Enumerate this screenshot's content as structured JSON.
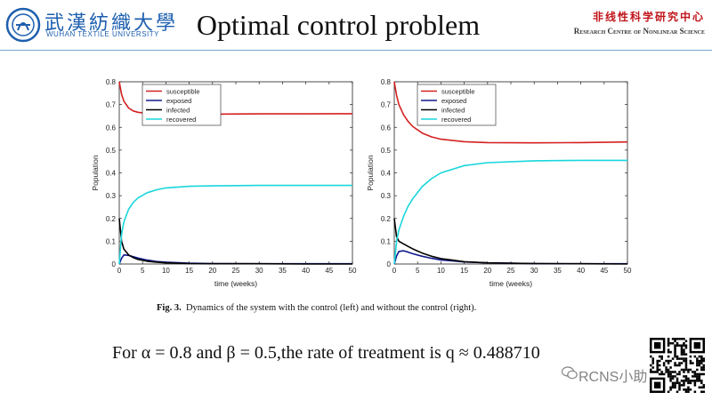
{
  "header": {
    "university_cn": "武漢紡織大學",
    "university_en": "WUHAN TEXTILE UNIVERSITY",
    "title": "Optimal control problem",
    "centre_cn": "非线性科学研究中心",
    "centre_en": "Research Centre of Nonlinear Science"
  },
  "figure": {
    "caption_label": "Fig. 3.",
    "caption_text": "Dynamics of the system with the control (left) and without the control (right)."
  },
  "note": "For α = 0.8 and β = 0.5,the rate of treatment is q ≈ 0.488710",
  "watermark": "RCNS小助",
  "colors": {
    "susceptible": "#d42020",
    "exposed": "#101a8c",
    "infected": "#000000",
    "recovered": "#19d6dc",
    "accent": "#1d5fae"
  },
  "chart_data": [
    {
      "type": "line",
      "title": "",
      "xlabel": "time (weeks)",
      "ylabel": "Population",
      "xlim": [
        0,
        50
      ],
      "ylim": [
        0,
        0.8
      ],
      "xticks": [
        0,
        5,
        10,
        15,
        20,
        25,
        30,
        35,
        40,
        45,
        50
      ],
      "yticks": [
        0,
        0.1,
        0.2,
        0.3,
        0.4,
        0.5,
        0.6,
        0.7,
        0.8
      ],
      "legend": "top-left",
      "x": [
        0,
        0.5,
        1,
        2,
        3,
        4,
        6,
        8,
        10,
        15,
        20,
        30,
        40,
        50
      ],
      "series": [
        {
          "name": "susceptible",
          "values": [
            0.8,
            0.745,
            0.715,
            0.685,
            0.672,
            0.666,
            0.661,
            0.659,
            0.658,
            0.658,
            0.658,
            0.659,
            0.659,
            0.66
          ]
        },
        {
          "name": "exposed",
          "values": [
            0.0,
            0.025,
            0.04,
            0.038,
            0.032,
            0.026,
            0.017,
            0.011,
            0.008,
            0.004,
            0.002,
            0.001,
            0.001,
            0.001
          ]
        },
        {
          "name": "infected",
          "values": [
            0.2,
            0.1,
            0.065,
            0.04,
            0.028,
            0.02,
            0.012,
            0.008,
            0.005,
            0.002,
            0.001,
            0.001,
            0.0,
            0.0
          ]
        },
        {
          "name": "recovered",
          "values": [
            0.0,
            0.13,
            0.185,
            0.24,
            0.27,
            0.29,
            0.313,
            0.326,
            0.334,
            0.341,
            0.343,
            0.345,
            0.345,
            0.345
          ]
        }
      ]
    },
    {
      "type": "line",
      "title": "",
      "xlabel": "time (weeks)",
      "ylabel": "Population",
      "xlim": [
        0,
        50
      ],
      "ylim": [
        0,
        0.8
      ],
      "xticks": [
        0,
        5,
        10,
        15,
        20,
        25,
        30,
        35,
        40,
        45,
        50
      ],
      "yticks": [
        0,
        0.1,
        0.2,
        0.3,
        0.4,
        0.5,
        0.6,
        0.7,
        0.8
      ],
      "legend": "top-left",
      "x": [
        0,
        0.5,
        1,
        2,
        3,
        4,
        6,
        8,
        10,
        15,
        20,
        30,
        40,
        50
      ],
      "series": [
        {
          "name": "susceptible",
          "values": [
            0.8,
            0.74,
            0.7,
            0.655,
            0.625,
            0.603,
            0.575,
            0.558,
            0.548,
            0.537,
            0.533,
            0.532,
            0.533,
            0.536
          ]
        },
        {
          "name": "exposed",
          "values": [
            0.0,
            0.035,
            0.055,
            0.058,
            0.052,
            0.045,
            0.034,
            0.025,
            0.018,
            0.009,
            0.005,
            0.002,
            0.001,
            0.001
          ]
        },
        {
          "name": "infected",
          "values": [
            0.2,
            0.12,
            0.1,
            0.088,
            0.077,
            0.066,
            0.048,
            0.034,
            0.024,
            0.01,
            0.005,
            0.002,
            0.001,
            0.0
          ]
        },
        {
          "name": "recovered",
          "values": [
            0.0,
            0.1,
            0.15,
            0.21,
            0.255,
            0.288,
            0.34,
            0.375,
            0.4,
            0.432,
            0.445,
            0.453,
            0.455,
            0.455
          ]
        }
      ]
    }
  ]
}
